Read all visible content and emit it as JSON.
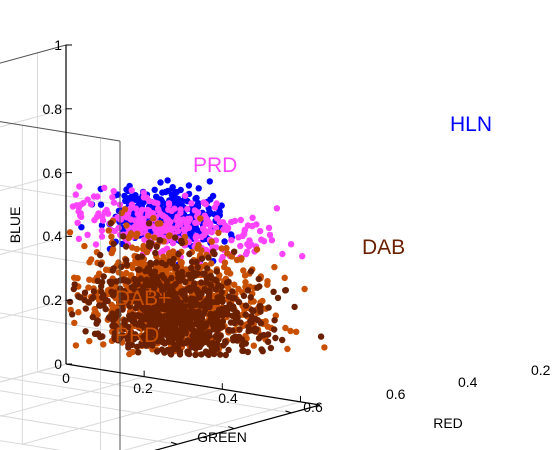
{
  "chart_data": {
    "type": "scatter",
    "projection": "3d",
    "xlabel": "RED",
    "ylabel": "GREEN",
    "zlabel": "BLUE",
    "xlim": [
      0,
      0.7
    ],
    "ylim": [
      0,
      0.65
    ],
    "zlim": [
      0,
      1
    ],
    "x_ticks": [
      "0.2",
      "0.4",
      "0.6"
    ],
    "y_ticks": [
      "0",
      "0.2",
      "0.4",
      "0.6"
    ],
    "z_ticks": [
      "0",
      "0.2",
      "0.4",
      "0.6",
      "0.8",
      "1"
    ],
    "grid": true,
    "box": true,
    "annotations": [
      {
        "text": "HLN",
        "color": "#0000ff"
      },
      {
        "text": "PRD",
        "color": "#ff44ff"
      },
      {
        "text": "DAB",
        "color": "#6b2000"
      },
      {
        "text": "DAB+",
        "color": "#c85000"
      },
      {
        "text": "PRD",
        "color": "#c85000"
      }
    ],
    "series": [
      {
        "color": "#0000ff",
        "point_count": 400,
        "center": {
          "x": 0.26,
          "y": 0.58,
          "z": 0.68
        },
        "spread": {
          "x": 0.04,
          "y": 0.06,
          "z": 0.04
        }
      },
      {
        "color": "#ff44ff",
        "point_count": 300,
        "center": {
          "x": 0.57,
          "y": 0.35,
          "z": 0.53
        },
        "spread": {
          "x": 0.05,
          "y": 0.14,
          "z": 0.04
        }
      },
      {
        "color": "#c85000",
        "point_count": 800,
        "center": {
          "x": 0.62,
          "y": 0.33,
          "z": 0.29
        },
        "spread": {
          "x": 0.03,
          "y": 0.11,
          "z": 0.09
        }
      },
      {
        "color": "#6b2000",
        "point_count": 900,
        "center": {
          "x": 0.5,
          "y": 0.43,
          "z": 0.28
        },
        "spread": {
          "x": 0.04,
          "y": 0.1,
          "z": 0.09
        }
      }
    ]
  }
}
